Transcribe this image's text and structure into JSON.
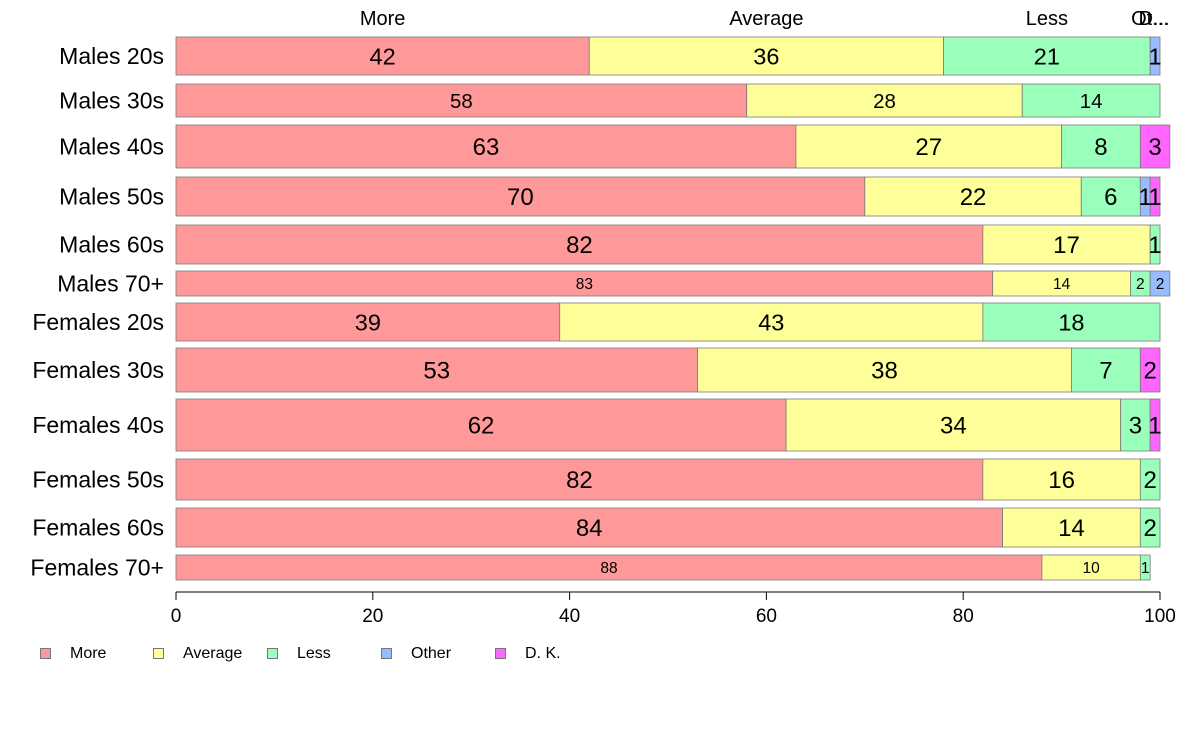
{
  "chart_data": {
    "type": "bar",
    "orientation": "horizontal",
    "stacked": true,
    "categories": [
      "Males 20s",
      "Males 30s",
      "Males 40s",
      "Males 50s",
      "Males 60s",
      "Males 70+",
      "Females 20s",
      "Females 30s",
      "Females 40s",
      "Females 50s",
      "Females 60s",
      "Females 70+"
    ],
    "series": [
      {
        "name": "More",
        "color": "#ff9999",
        "values": [
          42,
          58,
          63,
          70,
          82,
          83,
          39,
          53,
          62,
          82,
          84,
          88
        ]
      },
      {
        "name": "Average",
        "color": "#ffff99",
        "values": [
          36,
          28,
          27,
          22,
          17,
          14,
          43,
          38,
          34,
          16,
          14,
          10
        ]
      },
      {
        "name": "Less",
        "color": "#99ffbb",
        "values": [
          21,
          14,
          8,
          6,
          1,
          2,
          18,
          7,
          3,
          2,
          2,
          1
        ]
      },
      {
        "name": "Other",
        "color": "#99bbff",
        "values": [
          1,
          0,
          0,
          1,
          0,
          2,
          0,
          0,
          0,
          0,
          0,
          0
        ]
      },
      {
        "name": "D. K.",
        "color": "#ff66ff",
        "values": [
          0,
          0,
          3,
          1,
          0,
          0,
          0,
          2,
          1,
          0,
          0,
          0
        ]
      }
    ],
    "top_labels": [
      "More",
      "Average",
      "Less",
      "Ot...",
      "D..."
    ],
    "xlim": [
      0,
      100
    ],
    "xticks": [
      0,
      20,
      40,
      60,
      80,
      100
    ],
    "xlabel": "",
    "ylabel": "",
    "title": "",
    "grid": false,
    "legend_position": "bottom-left"
  },
  "legend": {
    "items": [
      {
        "label": "More",
        "color": "#ff9999"
      },
      {
        "label": "Average",
        "color": "#ffff99"
      },
      {
        "label": "Less",
        "color": "#99ffbb"
      },
      {
        "label": "Other",
        "color": "#99bbff"
      },
      {
        "label": "D. K.",
        "color": "#ff66ff"
      }
    ]
  }
}
